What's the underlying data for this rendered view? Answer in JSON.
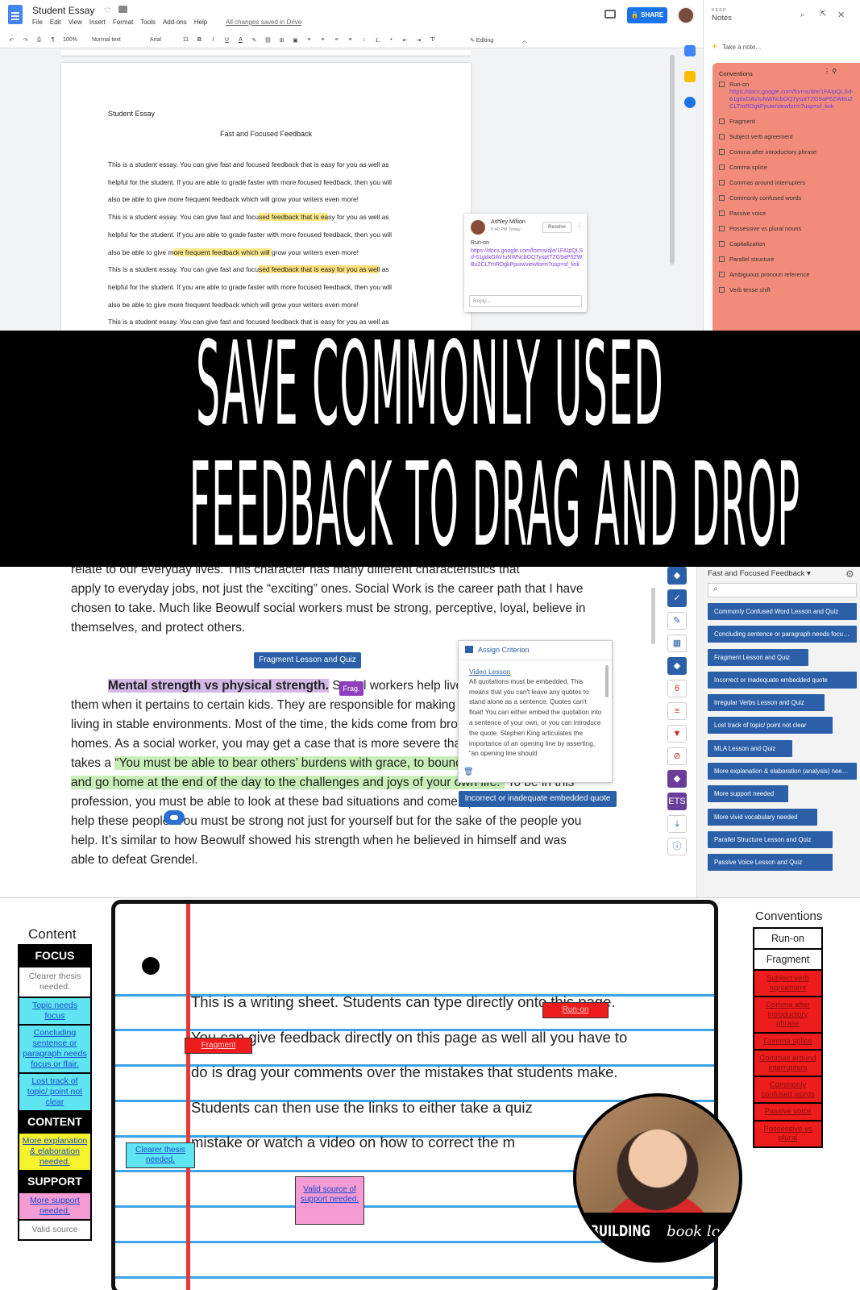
{
  "gdocs": {
    "doc_title": "Student Essay",
    "menu": [
      "File",
      "Edit",
      "View",
      "Insert",
      "Format",
      "Tools",
      "Add-ons",
      "Help"
    ],
    "saved_status": "All changes saved in Drive",
    "share_label": "SHARE",
    "toolbar": {
      "zoom": "100%",
      "style": "Normal text",
      "font": "Arial",
      "size": "11",
      "bold": "B",
      "italic": "I",
      "underline": "U",
      "text_color": "A",
      "mode": "Editing"
    },
    "page": {
      "heading": "Student Essay",
      "subtitle": "Fast and Focused Feedback",
      "paragraph_lines": [
        "This is a student essay. You can give fast and focused feedback that is easy for you as well as",
        "helpful for the student. If you are able to grade faster with more focused feedback, then you will",
        "also be able to give more frequent feedback which will grow your writers even more!",
        "This is a student essay. You can give fast and focused feedback that is easy for you as well as",
        "helpful for the student. If you are able to grade faster with more focused feedback, then you will",
        "also be able to give more frequent feedback which will grow your writers even more!",
        "This is a student essay. You can give fast and focused feedback that is easy for you as well as",
        "helpful for the student. If you are able to grade faster with more focused feedback, then you will",
        "also be able to give more frequent feedback which will grow your writers even more!",
        "This is a student essay. You can give fast and focused feedback that is easy for you as well as"
      ]
    },
    "comment": {
      "author": "Ashley Million",
      "time": "5:40 PM Today",
      "resolve": "Resolve",
      "label": "Run-on",
      "link": "https://docs.google.com/forms/d/e/1FAIpQLSd-61gdxOAVIuNWNcbOQ7ysptTZG9aP6ZWBu2CLTmRDgkPpuw/viewform?usp=sf_link",
      "reply_placeholder": "Reply..."
    }
  },
  "keep": {
    "brand": "KEEP",
    "title": "Notes",
    "take_note": "Take a note...",
    "note_color": "#f28b7a",
    "note_title": "Conventions",
    "items": [
      {
        "label": "Run-on",
        "link": "https://docs.google.com/forms/d/e/1FAIpQLSd-61gdxOAVIuNWNcbOQ7ysptTZG9aP6ZWBu2CLTmRDgkPpuw/viewform?usp=sf_link"
      },
      {
        "label": "Fragment"
      },
      {
        "label": "Subject verb agreement"
      },
      {
        "label": "Comma after introductory phrase"
      },
      {
        "label": "Comma splice"
      },
      {
        "label": "Commas around interrupters"
      },
      {
        "label": "Commonly confused words"
      },
      {
        "label": "Passive voice"
      },
      {
        "label": "Possessive vs plural nouns"
      },
      {
        "label": "Capitalization"
      },
      {
        "label": "Parallel structure"
      },
      {
        "label": "Ambiguous pronoun reference"
      },
      {
        "label": "Verb tense shift"
      }
    ]
  },
  "banner": {
    "line1": "SAVE COMMONLY USED",
    "line2": "FEEDBACK TO DRAG AND DROP"
  },
  "feedback_tool": {
    "essay": {
      "line0": "relate to our everyday lives. This character has many different characteristics that",
      "para1": "apply to everyday jobs, not just the “exciting” ones. Social Work is the career path that I have chosen to take. Much like Beowulf social workers must be strong, perceptive, loyal, believe in themselves, and protect others.",
      "highlight_purple": "Mental strength vs physical strength.",
      "para2_a": " Social workers help",
      "para2_b": "lives, you often hear of them when it pertains to certain kids. They are responsible for making sure these kids are living in stable environments. Most of the time, the kids come from broken or dangerous homes. As a social worker, you may get a case that is more severe than the others, that takes a",
      "highlight_green": "“You must be able to bear others’ burdens with grace, to bounce back from heartache and go home at the end of the day to the challenges and joys of your own life.”",
      "para2_c": " To be in this profession, you must be able to look at these bad situations and come up with solutions and help these people. You must be strong not just for yourself but for the sake of the people you help. It’s similar to how Beowulf showed his strength when he believed in himself and was able to defeat Grendel."
    },
    "tag_fragment": "Fragment Lesson and Quiz",
    "tag_frag_short": "Frag.",
    "tag_embedded": "Incorrect or inadequate embedded quote",
    "criterion": {
      "title": "Assign Criterion",
      "link": "Video Lesson",
      "body": "All quotations must be embedded. This means that you can't leave any quotes to stand alone as a sentence. Quotes can't float! You can either embed the quotation into a sentence of your own, or you can introduce the quote. Stephen King articulates the importance of an opening line by asserting, “an opening line should"
    },
    "tools": [
      "◆",
      "✓",
      "✎",
      "▦",
      "◆",
      "6",
      "≡",
      "▼",
      "⊘",
      "◆",
      "ETS",
      "⤓",
      "ⓘ"
    ],
    "panel": {
      "title": "Fast and Focused Feedback ▾",
      "items": [
        "Commonly Confused Word Lesson and Quiz",
        "Concluding sentence or paragraph needs focus ...",
        "Fragment Lesson and Quiz",
        "Incorrect or inadequate embedded quote",
        "Irregular Verbs Lesson and Quiz",
        "Lost track of topic/ point not clear",
        "MLA Lesson and Quiz",
        "More explanation & elaboration (analysis) need...",
        "More support needed",
        "More vivid vocabulary needed",
        "Parallel Structure Lesson and Quiz",
        "Passive Voice Lesson and Quiz"
      ]
    }
  },
  "writing_sheet": {
    "content_label": "Content",
    "left_column": [
      {
        "text": "FOCUS",
        "kind": "head"
      },
      {
        "text": "Clearer thesis needed.",
        "kind": "plain"
      },
      {
        "text": "Topic needs focus",
        "kind": "cyan"
      },
      {
        "text": "Concluding sentence or paragraph needs focus or flair.",
        "kind": "cyan"
      },
      {
        "text": "Lost track of topic/ point not clear",
        "kind": "cyan"
      },
      {
        "text": "CONTENT",
        "kind": "head"
      },
      {
        "text": "More explanation & elaboration needed.",
        "kind": "yellow"
      },
      {
        "text": "SUPPORT",
        "kind": "head"
      },
      {
        "text": "More support needed.",
        "kind": "pink"
      },
      {
        "text": "Valid source",
        "kind": "plain"
      }
    ],
    "sheet_lines": [
      "This is a writing sheet. Students can type directly onto this page.",
      "You can give feedback directly on this page as well all you have to",
      "do is drag your comments over the mistakes that students make.",
      "Students can then use the links to either take a quiz",
      "mistake or watch a video on how to correct the m"
    ],
    "stickers": {
      "run_on": "Run-on",
      "fragment": "Fragment",
      "thesis": "Clearer thesis needed.",
      "source": "Valid source of support needed."
    },
    "conventions_label": "Conventions",
    "right_column": [
      {
        "text": "Run-on",
        "kind": "plain"
      },
      {
        "text": "Fragment",
        "kind": "plain"
      },
      {
        "text": "Subject verb agreement",
        "kind": "red"
      },
      {
        "text": "Comma after introductory phrase",
        "kind": "red"
      },
      {
        "text": "Comma splice",
        "kind": "red"
      },
      {
        "text": "Commas around interrupters",
        "kind": "red"
      },
      {
        "text": "Commonly confused words",
        "kind": "red"
      },
      {
        "text": "Passive voice",
        "kind": "red"
      },
      {
        "text": "Possessive vs plural",
        "kind": "red"
      }
    ],
    "logo_word1": "BUILDING",
    "logo_word2": "book love"
  }
}
